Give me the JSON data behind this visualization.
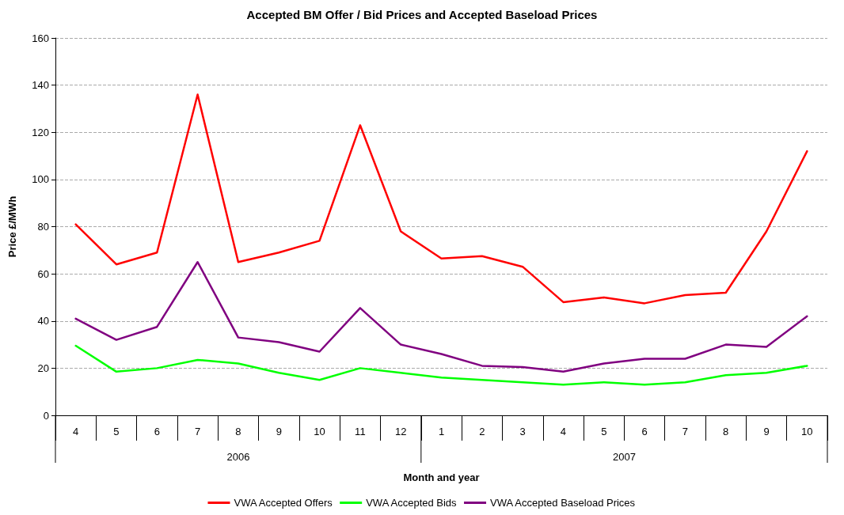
{
  "chart_data": {
    "type": "line",
    "title": "Accepted BM Offer / Bid Prices and Accepted Baseload Prices",
    "xlabel": "Month and year",
    "ylabel": "Price £/MWh",
    "categories": [
      "4",
      "5",
      "6",
      "7",
      "8",
      "9",
      "10",
      "11",
      "12",
      "1",
      "2",
      "3",
      "4",
      "5",
      "6",
      "7",
      "8",
      "9",
      "10"
    ],
    "annotations": [
      "2006",
      "2007"
    ],
    "series": [
      {
        "name": "VWA Accepted Offers",
        "color": "#ff0000",
        "values": [
          81,
          64,
          69,
          136,
          65,
          69,
          74,
          123,
          78,
          66.5,
          67.5,
          63,
          48,
          50,
          47.5,
          51,
          52,
          78,
          112
        ]
      },
      {
        "name": "VWA Accepted Bids",
        "color": "#00ff00",
        "values": [
          29.5,
          18.5,
          20,
          23.5,
          22,
          18,
          15,
          20,
          18,
          16,
          15,
          14,
          13,
          14,
          13,
          14,
          17,
          18,
          21
        ]
      },
      {
        "name": "VWA Accepted Baseload Prices",
        "color": "#800080",
        "values": [
          41,
          32,
          37.5,
          65,
          33,
          31,
          27,
          45.5,
          30,
          26,
          21,
          20.5,
          18.5,
          22,
          24,
          24,
          30,
          29,
          42
        ]
      }
    ],
    "ylim": [
      0,
      160
    ],
    "yticks": [
      0,
      20,
      40,
      60,
      80,
      100,
      120,
      140,
      160
    ],
    "grid": "y",
    "legend": "bottom",
    "marker": "none",
    "line_style": "solid"
  }
}
